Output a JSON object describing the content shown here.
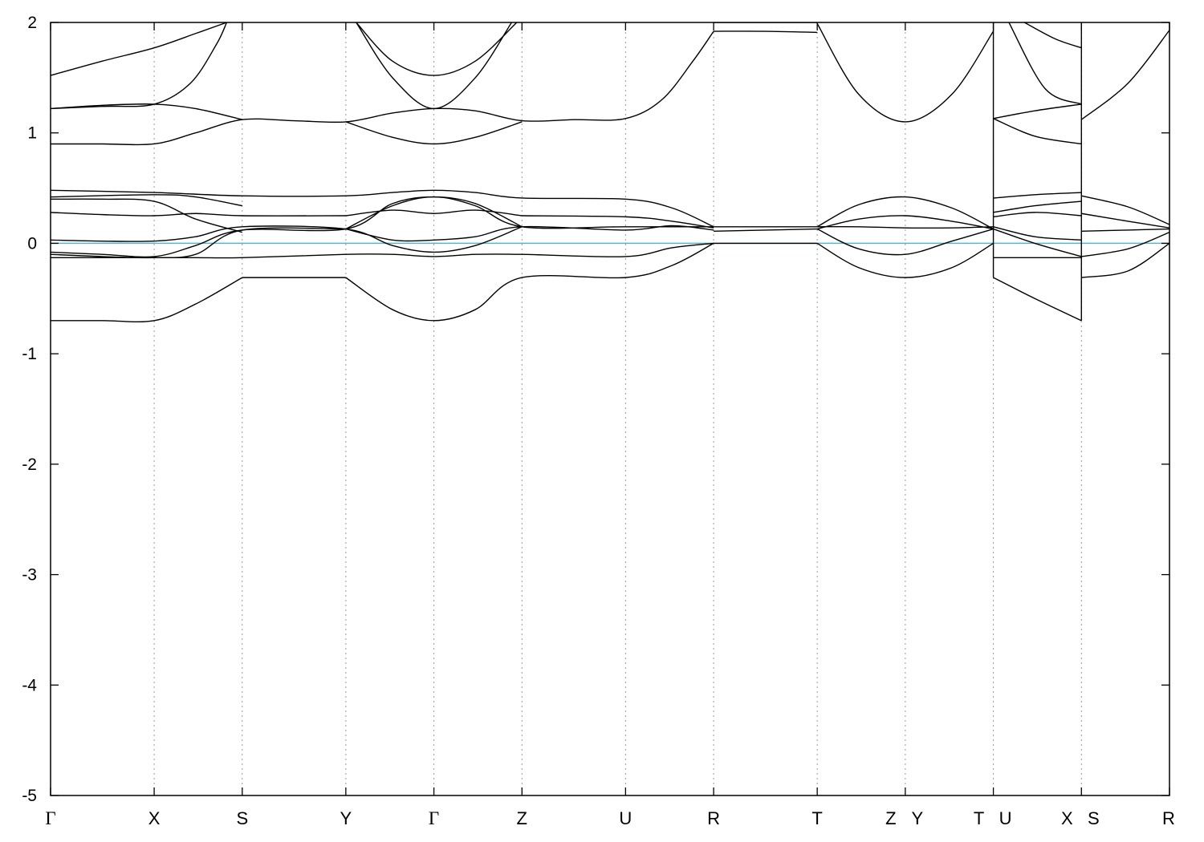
{
  "chart_data": {
    "type": "line",
    "title": "",
    "xlabel": "",
    "ylabel": "",
    "ylim": [
      -5,
      2
    ],
    "yticks": [
      2,
      1,
      0,
      -1,
      -2,
      -3,
      -4,
      -5
    ],
    "ytick_labels": [
      "2",
      "1",
      "0",
      "-1",
      "-2",
      "-3",
      "-4",
      "-5"
    ],
    "grid": "vertical dotted lines at high-symmetry points",
    "fermi_level": {
      "energy": 0,
      "color": "#5ab4c8"
    },
    "band_color": "#000000",
    "kpoints": [
      {
        "label": "Γ",
        "x": 0.0
      },
      {
        "label": "X",
        "x": 1.0
      },
      {
        "label": "S",
        "x": 1.85
      },
      {
        "label": "Y",
        "x": 2.85
      },
      {
        "label": "Γ",
        "x": 3.7
      },
      {
        "label": "Z",
        "x": 4.55
      },
      {
        "label": "U",
        "x": 5.55
      },
      {
        "label": "R",
        "x": 6.4
      },
      {
        "label": "T",
        "x": 7.4
      },
      {
        "label": "Z Y",
        "x": 8.25
      },
      {
        "label": "T U",
        "x": 9.1
      },
      {
        "label": "X S",
        "x": 9.95
      },
      {
        "label": "R",
        "x": 10.8
      }
    ],
    "xlim": [
      0,
      10.8
    ],
    "series": [
      {
        "x": [
          0,
          0.5,
          1.0,
          1.4,
          1.7
        ],
        "y": [
          1.52,
          1.65,
          1.77,
          1.9,
          2.0
        ]
      },
      {
        "x": [
          0,
          0.5,
          1.0,
          1.35,
          1.6,
          1.7
        ],
        "y": [
          1.22,
          1.24,
          1.26,
          1.45,
          1.8,
          2.0
        ]
      },
      {
        "x": [
          0,
          0.5,
          1.0,
          1.4,
          1.85,
          2.35,
          2.85,
          3.3,
          3.7,
          4.1,
          4.55,
          5.05,
          5.55,
          5.9,
          6.2,
          6.4
        ],
        "y": [
          0.9,
          0.9,
          0.9,
          1.0,
          1.12,
          1.11,
          1.1,
          1.18,
          1.22,
          1.2,
          1.11,
          1.12,
          1.13,
          1.3,
          1.65,
          1.92
        ]
      },
      {
        "x": [
          0,
          0.5,
          1.0,
          1.4,
          1.85
        ],
        "y": [
          1.22,
          1.25,
          1.26,
          1.22,
          1.12
        ]
      },
      {
        "x": [
          2.85,
          3.3,
          3.7,
          4.1,
          4.55
        ],
        "y": [
          1.1,
          0.96,
          0.9,
          0.96,
          1.1
        ]
      },
      {
        "x": [
          2.95,
          3.3,
          3.7,
          4.1,
          4.5
        ],
        "y": [
          2.0,
          1.65,
          1.52,
          1.65,
          2.0
        ]
      },
      {
        "x": [
          2.95,
          3.3,
          3.7,
          4.1,
          4.45
        ],
        "y": [
          2.0,
          1.5,
          1.22,
          1.5,
          2.0
        ]
      },
      {
        "x": [
          6.4,
          6.9,
          7.4
        ],
        "y": [
          1.92,
          1.92,
          1.91
        ]
      },
      {
        "x": [
          6.4,
          6.9,
          7.4
        ],
        "y": [
          2.0,
          2.0,
          2.0
        ]
      },
      {
        "x": [
          7.4,
          7.8,
          8.25,
          8.7,
          9.1
        ],
        "y": [
          1.99,
          1.35,
          1.1,
          1.35,
          1.92
        ]
      },
      {
        "x": [
          9.1,
          9.5,
          9.95
        ],
        "y": [
          1.13,
          1.2,
          1.26
        ]
      },
      {
        "x": [
          9.1,
          9.5,
          9.95
        ],
        "y": [
          1.13,
          0.97,
          0.9
        ]
      },
      {
        "x": [
          9.25,
          9.6,
          9.95
        ],
        "y": [
          2.0,
          1.4,
          1.26
        ]
      },
      {
        "x": [
          9.4,
          9.7,
          9.95
        ],
        "y": [
          2.0,
          1.85,
          1.77
        ]
      },
      {
        "x": [
          9.95,
          10.4,
          10.8
        ],
        "y": [
          1.12,
          1.45,
          1.93
        ]
      },
      {
        "x": [
          0,
          1.0,
          1.85,
          2.85,
          3.3,
          3.7,
          4.1,
          4.55,
          5.55,
          6.0,
          6.4
        ],
        "y": [
          0.48,
          0.46,
          0.43,
          0.43,
          0.46,
          0.48,
          0.46,
          0.41,
          0.4,
          0.32,
          0.15
        ]
      },
      {
        "x": [
          0,
          1.0,
          1.4,
          1.85
        ],
        "y": [
          0.42,
          0.44,
          0.42,
          0.34
        ]
      },
      {
        "x": [
          0,
          0.5,
          1.0,
          1.4,
          1.85
        ],
        "y": [
          0.4,
          0.4,
          0.38,
          0.22,
          0.1
        ]
      },
      {
        "x": [
          0,
          0.5,
          1.0,
          1.4,
          1.85,
          2.85
        ],
        "y": [
          0.28,
          0.26,
          0.25,
          0.27,
          0.25,
          0.25
        ]
      },
      {
        "x": [
          2.85,
          3.3,
          3.7,
          4.1,
          4.55
        ],
        "y": [
          0.25,
          0.3,
          0.27,
          0.3,
          0.25
        ]
      },
      {
        "x": [
          2.85,
          3.3,
          3.7,
          4.1,
          4.55,
          5.55,
          6.4
        ],
        "y": [
          0.13,
          0.34,
          0.42,
          0.34,
          0.15,
          0.15,
          0.15
        ]
      },
      {
        "x": [
          2.85,
          3.3,
          3.7,
          4.1,
          4.55,
          5.55,
          6.0,
          6.4
        ],
        "y": [
          0.13,
          0.03,
          0.03,
          0.06,
          0.15,
          0.12,
          0.16,
          0.12
        ]
      },
      {
        "x": [
          4.55,
          5.55,
          6.0,
          6.4
        ],
        "y": [
          0.25,
          0.24,
          0.2,
          0.14
        ]
      },
      {
        "x": [
          0,
          0.5,
          1.0,
          1.4,
          1.85,
          2.85,
          3.3,
          3.7,
          4.1,
          4.55
        ],
        "y": [
          0.03,
          0.02,
          0.02,
          0.06,
          0.15,
          0.13,
          -0.02,
          -0.08,
          -0.02,
          0.15
        ]
      },
      {
        "x": [
          0,
          0.5,
          1.0,
          1.4,
          1.85,
          2.85,
          3.3,
          3.7,
          4.1,
          4.55
        ],
        "y": [
          -0.08,
          -0.1,
          -0.12,
          -0.02,
          0.12,
          0.13,
          0.36,
          0.42,
          0.36,
          0.15
        ]
      },
      {
        "x": [
          0,
          1.0,
          1.4,
          1.85,
          2.85,
          3.3,
          3.7,
          4.1,
          4.55,
          5.55,
          6.0,
          6.4
        ],
        "y": [
          -0.13,
          -0.13,
          -0.13,
          -0.13,
          -0.1,
          -0.1,
          -0.12,
          -0.1,
          -0.1,
          -0.12,
          -0.04,
          0.0
        ]
      },
      {
        "x": [
          0,
          0.5,
          1.0,
          1.4,
          1.85
        ],
        "y": [
          -0.7,
          -0.7,
          -0.7,
          -0.55,
          -0.31
        ]
      },
      {
        "x": [
          1.85,
          2.85
        ],
        "y": [
          -0.31,
          -0.31
        ]
      },
      {
        "x": [
          2.85,
          3.3,
          3.7,
          4.1,
          4.55,
          5.55,
          6.0,
          6.4
        ],
        "y": [
          -0.31,
          -0.6,
          -0.7,
          -0.6,
          -0.31,
          -0.31,
          -0.2,
          0.0
        ]
      },
      {
        "x": [
          6.4,
          6.9,
          7.4
        ],
        "y": [
          0.15,
          0.15,
          0.15
        ]
      },
      {
        "x": [
          6.4,
          6.9,
          7.4
        ],
        "y": [
          0.11,
          0.12,
          0.13
        ]
      },
      {
        "x": [
          6.4,
          6.9,
          7.4
        ],
        "y": [
          0.0,
          0.0,
          0.0
        ]
      },
      {
        "x": [
          7.4,
          7.8,
          8.25,
          8.7,
          9.1
        ],
        "y": [
          0.15,
          0.35,
          0.42,
          0.32,
          0.13
        ]
      },
      {
        "x": [
          7.4,
          7.8,
          8.25,
          8.7,
          9.1
        ],
        "y": [
          0.13,
          0.22,
          0.25,
          0.2,
          0.13
        ]
      },
      {
        "x": [
          7.4,
          7.8,
          8.25,
          8.7,
          9.1
        ],
        "y": [
          0.15,
          0.15,
          0.14,
          0.14,
          0.15
        ]
      },
      {
        "x": [
          7.4,
          7.8,
          8.25,
          8.7,
          9.1
        ],
        "y": [
          0.13,
          -0.05,
          -0.1,
          0.02,
          0.13
        ]
      },
      {
        "x": [
          7.4,
          7.8,
          8.25,
          8.7,
          9.1
        ],
        "y": [
          0.0,
          -0.22,
          -0.31,
          -0.22,
          0.0
        ]
      },
      {
        "x": [
          9.1,
          9.5,
          9.95
        ],
        "y": [
          0.41,
          0.44,
          0.46
        ]
      },
      {
        "x": [
          9.1,
          9.5,
          9.95
        ],
        "y": [
          0.28,
          0.34,
          0.38
        ]
      },
      {
        "x": [
          9.1,
          9.5,
          9.95
        ],
        "y": [
          0.24,
          0.28,
          0.25
        ]
      },
      {
        "x": [
          9.1,
          9.5,
          9.95
        ],
        "y": [
          0.13,
          0.0,
          -0.12
        ]
      },
      {
        "x": [
          9.1,
          9.5,
          9.95
        ],
        "y": [
          0.15,
          0.06,
          0.03
        ]
      },
      {
        "x": [
          9.1,
          9.5,
          9.95
        ],
        "y": [
          -0.13,
          -0.13,
          -0.13
        ]
      },
      {
        "x": [
          9.1,
          9.5,
          9.95
        ],
        "y": [
          -0.31,
          -0.5,
          -0.7
        ]
      },
      {
        "x": [
          9.95,
          10.4,
          10.8
        ],
        "y": [
          0.43,
          0.33,
          0.17
        ]
      },
      {
        "x": [
          9.95,
          10.4,
          10.8
        ],
        "y": [
          0.27,
          0.2,
          0.14
        ]
      },
      {
        "x": [
          9.95,
          10.4,
          10.8
        ],
        "y": [
          0.11,
          0.12,
          0.13
        ]
      },
      {
        "x": [
          9.95,
          10.4,
          10.8
        ],
        "y": [
          -0.12,
          -0.05,
          0.1
        ]
      },
      {
        "x": [
          9.95,
          10.4,
          10.8
        ],
        "y": [
          -0.31,
          -0.25,
          0.0
        ]
      },
      {
        "x": [
          0,
          0.5,
          1.0,
          1.4,
          1.85,
          2.85
        ],
        "y": [
          -0.1,
          -0.12,
          -0.13,
          -0.1,
          0.12,
          0.13
        ]
      }
    ],
    "vertical_segments": [
      {
        "x": 9.1,
        "ymin": -0.31,
        "ymax": 2.0
      },
      {
        "x": 9.95,
        "ymin": -0.7,
        "ymax": 2.0
      }
    ]
  }
}
